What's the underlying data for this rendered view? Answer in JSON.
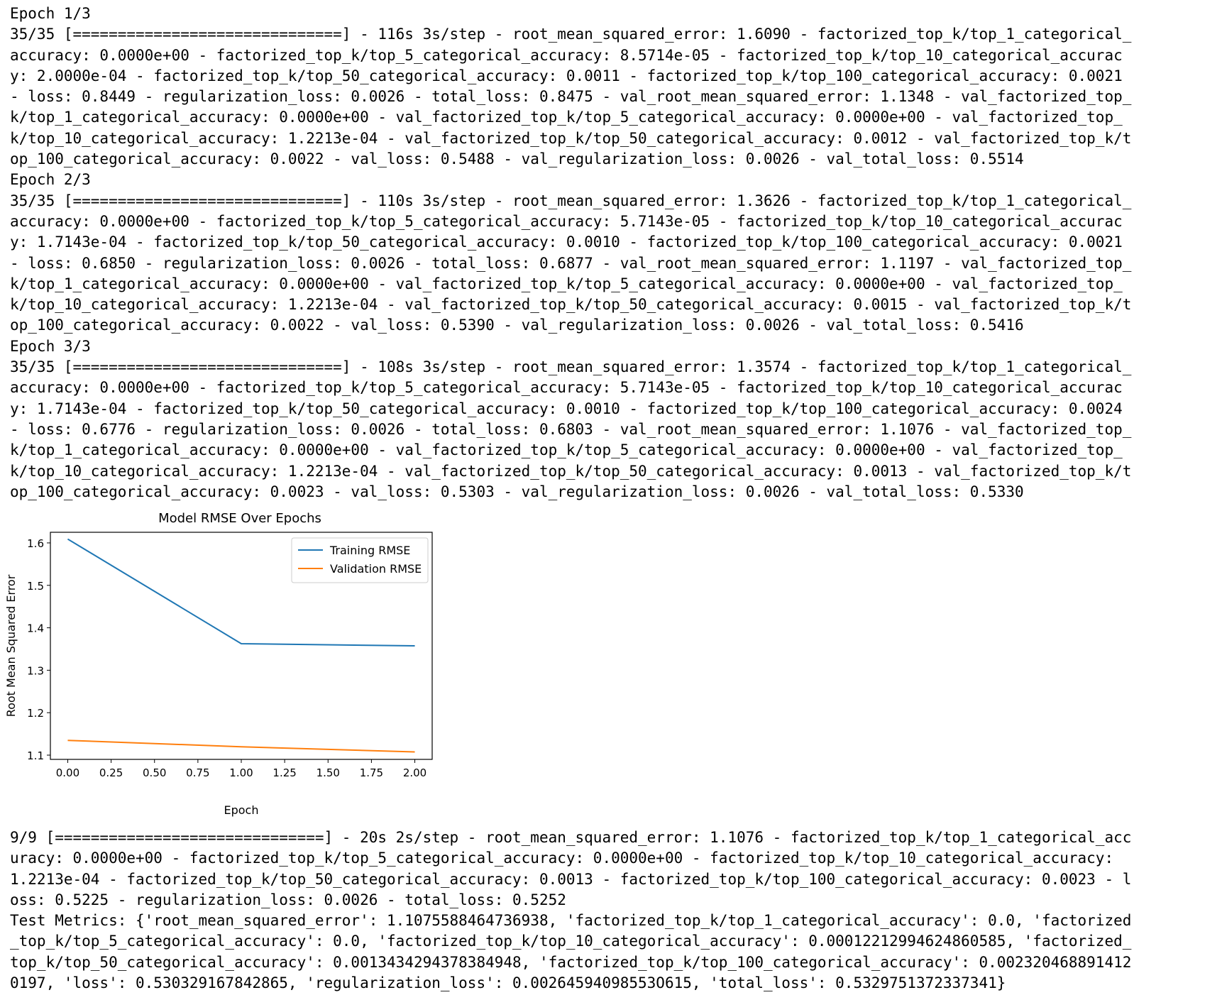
{
  "log_top": [
    "Epoch 1/3",
    "35/35 [==============================] - 116s 3s/step - root_mean_squared_error: 1.6090 - factorized_top_k/top_1_categorical_",
    "accuracy: 0.0000e+00 - factorized_top_k/top_5_categorical_accuracy: 8.5714e-05 - factorized_top_k/top_10_categorical_accurac",
    "y: 2.0000e-04 - factorized_top_k/top_50_categorical_accuracy: 0.0011 - factorized_top_k/top_100_categorical_accuracy: 0.0021",
    "- loss: 0.8449 - regularization_loss: 0.0026 - total_loss: 0.8475 - val_root_mean_squared_error: 1.1348 - val_factorized_top_",
    "k/top_1_categorical_accuracy: 0.0000e+00 - val_factorized_top_k/top_5_categorical_accuracy: 0.0000e+00 - val_factorized_top_",
    "k/top_10_categorical_accuracy: 1.2213e-04 - val_factorized_top_k/top_50_categorical_accuracy: 0.0012 - val_factorized_top_k/t",
    "op_100_categorical_accuracy: 0.0022 - val_loss: 0.5488 - val_regularization_loss: 0.0026 - val_total_loss: 0.5514",
    "Epoch 2/3",
    "35/35 [==============================] - 110s 3s/step - root_mean_squared_error: 1.3626 - factorized_top_k/top_1_categorical_",
    "accuracy: 0.0000e+00 - factorized_top_k/top_5_categorical_accuracy: 5.7143e-05 - factorized_top_k/top_10_categorical_accurac",
    "y: 1.7143e-04 - factorized_top_k/top_50_categorical_accuracy: 0.0010 - factorized_top_k/top_100_categorical_accuracy: 0.0021",
    "- loss: 0.6850 - regularization_loss: 0.0026 - total_loss: 0.6877 - val_root_mean_squared_error: 1.1197 - val_factorized_top_",
    "k/top_1_categorical_accuracy: 0.0000e+00 - val_factorized_top_k/top_5_categorical_accuracy: 0.0000e+00 - val_factorized_top_",
    "k/top_10_categorical_accuracy: 1.2213e-04 - val_factorized_top_k/top_50_categorical_accuracy: 0.0015 - val_factorized_top_k/t",
    "op_100_categorical_accuracy: 0.0022 - val_loss: 0.5390 - val_regularization_loss: 0.0026 - val_total_loss: 0.5416",
    "Epoch 3/3",
    "35/35 [==============================] - 108s 3s/step - root_mean_squared_error: 1.3574 - factorized_top_k/top_1_categorical_",
    "accuracy: 0.0000e+00 - factorized_top_k/top_5_categorical_accuracy: 5.7143e-05 - factorized_top_k/top_10_categorical_accurac",
    "y: 1.7143e-04 - factorized_top_k/top_50_categorical_accuracy: 0.0010 - factorized_top_k/top_100_categorical_accuracy: 0.0024",
    "- loss: 0.6776 - regularization_loss: 0.0026 - total_loss: 0.6803 - val_root_mean_squared_error: 1.1076 - val_factorized_top_",
    "k/top_1_categorical_accuracy: 0.0000e+00 - val_factorized_top_k/top_5_categorical_accuracy: 0.0000e+00 - val_factorized_top_",
    "k/top_10_categorical_accuracy: 1.2213e-04 - val_factorized_top_k/top_50_categorical_accuracy: 0.0013 - val_factorized_top_k/t",
    "op_100_categorical_accuracy: 0.0023 - val_loss: 0.5303 - val_regularization_loss: 0.0026 - val_total_loss: 0.5330"
  ],
  "log_bottom": [
    "9/9 [==============================] - 20s 2s/step - root_mean_squared_error: 1.1076 - factorized_top_k/top_1_categorical_acc",
    "uracy: 0.0000e+00 - factorized_top_k/top_5_categorical_accuracy: 0.0000e+00 - factorized_top_k/top_10_categorical_accuracy:",
    "1.2213e-04 - factorized_top_k/top_50_categorical_accuracy: 0.0013 - factorized_top_k/top_100_categorical_accuracy: 0.0023 - l",
    "oss: 0.5225 - regularization_loss: 0.0026 - total_loss: 0.5252",
    "Test Metrics: {'root_mean_squared_error': 1.1075588464736938, 'factorized_top_k/top_1_categorical_accuracy': 0.0, 'factorized",
    "_top_k/top_5_categorical_accuracy': 0.0, 'factorized_top_k/top_10_categorical_accuracy': 0.00012212994624860585, 'factorized_",
    "top_k/top_50_categorical_accuracy': 0.0013434294378384948, 'factorized_top_k/top_100_categorical_accuracy': 0.002320468891412",
    "0197, 'loss': 0.530329167842865, 'regularization_loss': 0.00264594098553O615, 'total_loss': 0.5329751372337341}"
  ],
  "chart_data": {
    "type": "line",
    "title": "Model RMSE Over Epochs",
    "xlabel": "Epoch",
    "ylabel": "Root Mean Squared Error",
    "x": [
      0,
      1,
      2
    ],
    "xlim": [
      -0.1,
      2.1
    ],
    "ylim": [
      1.09,
      1.625
    ],
    "xticks": [
      "0.00",
      "0.25",
      "0.50",
      "0.75",
      "1.00",
      "1.25",
      "1.50",
      "1.75",
      "2.00"
    ],
    "yticks": [
      "1.1",
      "1.2",
      "1.3",
      "1.4",
      "1.5",
      "1.6"
    ],
    "grid": false,
    "legend": "top-right",
    "series": [
      {
        "name": "Training RMSE",
        "values": [
          1.609,
          1.3626,
          1.3574
        ],
        "color": "#1f77b4"
      },
      {
        "name": "Validation RMSE",
        "values": [
          1.1348,
          1.1197,
          1.1076
        ],
        "color": "#ff7f0e"
      }
    ]
  }
}
